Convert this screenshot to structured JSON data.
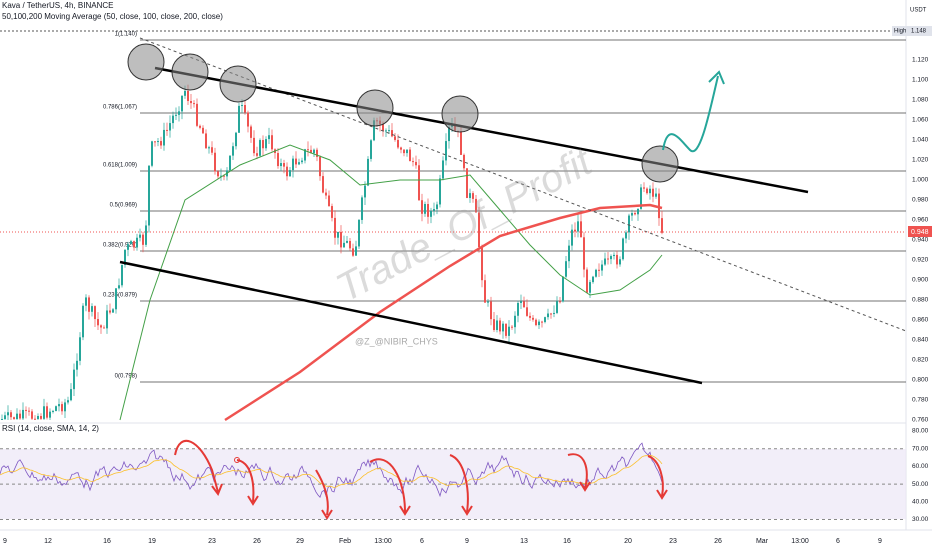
{
  "header": {
    "symbol": "Kava / TetherUS, 4h, BINANCE",
    "indicator": "50,100,200 Moving Average (50, close, 100, close, 200, close)",
    "currency": "USDT"
  },
  "price_axis": {
    "labels": [
      "1.120",
      "1.100",
      "1.080",
      "1.060",
      "1.040",
      "1.020",
      "1.000",
      "0.980",
      "0.960",
      "0.940",
      "0.920",
      "0.900",
      "0.880",
      "0.860",
      "0.840",
      "0.820",
      "0.800",
      "0.780",
      "0.760"
    ],
    "high_tag": "High",
    "high_value": "1.148",
    "last_price": "0.948"
  },
  "fib_levels": [
    "1(1.140)",
    "0.786(1.067)",
    "0.618(1.009)",
    "0.5(0.969)",
    "0.382(0.929)",
    "0.236(0.879)",
    "0(0.798)"
  ],
  "watermark": {
    "main": "Trade_Of_Profit",
    "handle": "@Z_@NIBIR_CHYS"
  },
  "rsi": {
    "title": "RSI (14, close, SMA, 14, 2)",
    "labels": [
      "80.00",
      "70.00",
      "60.00",
      "50.00",
      "40.00",
      "30.00"
    ]
  },
  "time_axis": [
    "9",
    "12",
    "16",
    "19",
    "23",
    "26",
    "29",
    "Feb",
    "13:00",
    "6",
    "9",
    "13",
    "16",
    "20",
    "23",
    "26",
    "Mar",
    "13:00",
    "6",
    "9"
  ]
}
